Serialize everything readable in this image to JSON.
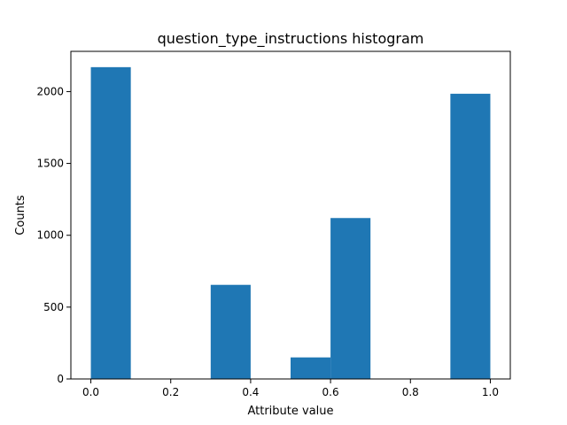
{
  "chart_data": {
    "type": "bar",
    "title": "question_type_instructions histogram",
    "xlabel": "Attribute value",
    "ylabel": "Counts",
    "bins": [
      {
        "x0": 0.0,
        "x1": 0.1,
        "count": 2170
      },
      {
        "x0": 0.1,
        "x1": 0.2,
        "count": 0
      },
      {
        "x0": 0.2,
        "x1": 0.3,
        "count": 0
      },
      {
        "x0": 0.3,
        "x1": 0.4,
        "count": 655
      },
      {
        "x0": 0.4,
        "x1": 0.5,
        "count": 0
      },
      {
        "x0": 0.5,
        "x1": 0.6,
        "count": 150
      },
      {
        "x0": 0.6,
        "x1": 0.7,
        "count": 1120
      },
      {
        "x0": 0.7,
        "x1": 0.8,
        "count": 0
      },
      {
        "x0": 0.8,
        "x1": 0.9,
        "count": 0
      },
      {
        "x0": 0.9,
        "x1": 1.0,
        "count": 1985
      }
    ],
    "xlim": [
      -0.05,
      1.05
    ],
    "ylim": [
      0,
      2280
    ],
    "xticks": [
      0.0,
      0.2,
      0.4,
      0.6,
      0.8,
      1.0
    ],
    "xtick_labels": [
      "0.0",
      "0.2",
      "0.4",
      "0.6",
      "0.8",
      "1.0"
    ],
    "yticks": [
      0,
      500,
      1000,
      1500,
      2000
    ],
    "ytick_labels": [
      "0",
      "500",
      "1000",
      "1500",
      "2000"
    ],
    "bar_color": "#1f77b4",
    "grid": false,
    "legend": "none"
  }
}
